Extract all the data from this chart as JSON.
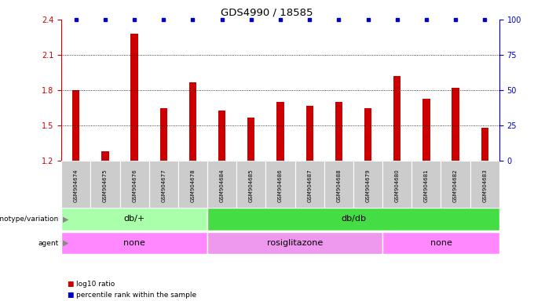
{
  "title": "GDS4990 / 18585",
  "samples": [
    "GSM904674",
    "GSM904675",
    "GSM904676",
    "GSM904677",
    "GSM904678",
    "GSM904684",
    "GSM904685",
    "GSM904686",
    "GSM904687",
    "GSM904688",
    "GSM904679",
    "GSM904680",
    "GSM904681",
    "GSM904682",
    "GSM904683"
  ],
  "bar_values": [
    1.8,
    1.28,
    2.28,
    1.65,
    1.87,
    1.63,
    1.57,
    1.7,
    1.67,
    1.7,
    1.65,
    1.92,
    1.73,
    1.82,
    1.48
  ],
  "percentile_values": [
    100,
    100,
    100,
    100,
    100,
    100,
    100,
    100,
    100,
    100,
    100,
    100,
    100,
    100,
    100
  ],
  "bar_color": "#cc0000",
  "percentile_color": "#0000cc",
  "ylim_left": [
    1.2,
    2.4
  ],
  "ylim_right": [
    0,
    100
  ],
  "yticks_left": [
    1.2,
    1.5,
    1.8,
    2.1,
    2.4
  ],
  "yticks_right": [
    0,
    25,
    50,
    75,
    100
  ],
  "gridlines": [
    1.5,
    1.8,
    2.1
  ],
  "genotype_groups": [
    {
      "label": "db/+",
      "start": 0,
      "end": 5,
      "color": "#aaffaa"
    },
    {
      "label": "db/db",
      "start": 5,
      "end": 15,
      "color": "#44dd44"
    }
  ],
  "agent_groups": [
    {
      "label": "none",
      "start": 0,
      "end": 5,
      "color": "#ff88ff"
    },
    {
      "label": "rosiglitazone",
      "start": 5,
      "end": 11,
      "color": "#ee99ee"
    },
    {
      "label": "none",
      "start": 11,
      "end": 15,
      "color": "#ff88ff"
    }
  ],
  "legend_items": [
    {
      "label": "log10 ratio",
      "color": "#cc0000"
    },
    {
      "label": "percentile rank within the sample",
      "color": "#0000cc"
    }
  ],
  "background_color": "#ffffff",
  "tick_label_bg": "#cccccc",
  "bar_width": 0.25
}
